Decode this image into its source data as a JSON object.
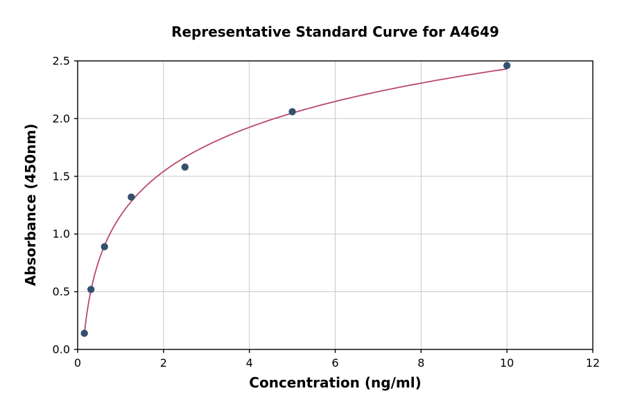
{
  "chart_data": {
    "type": "scatter",
    "title": "Representative Standard Curve for A4649",
    "xlabel": "Concentration (ng/ml)",
    "ylabel": "Absorbance (450nm)",
    "xlim": [
      0,
      12
    ],
    "ylim": [
      0,
      2.5
    ],
    "xticks": [
      0,
      2,
      4,
      6,
      8,
      10,
      12
    ],
    "xtick_labels": [
      "0",
      "2",
      "4",
      "6",
      "8",
      "10",
      "12"
    ],
    "yticks": [
      0,
      0.5,
      1.0,
      1.5,
      2.0,
      2.5
    ],
    "ytick_labels": [
      "0.0",
      "0.5",
      "1.0",
      "1.5",
      "2.0",
      "2.5"
    ],
    "grid": true,
    "legend_position": "none",
    "points": {
      "x": [
        0.156,
        0.31,
        0.625,
        1.25,
        2.5,
        5,
        10
      ],
      "y": [
        0.14,
        0.52,
        0.89,
        1.32,
        1.58,
        2.06,
        2.46
      ]
    },
    "fit_curve": {
      "type": "logarithmic"
    },
    "colors": {
      "points": "#34506d",
      "curve": "#b8476e",
      "grid": "#c9c9c9",
      "axis": "#000000",
      "background": "#ffffff"
    }
  }
}
